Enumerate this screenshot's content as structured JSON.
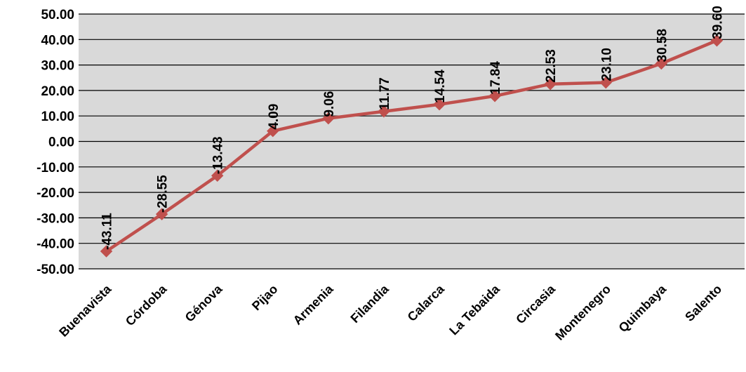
{
  "chart_data": {
    "type": "line",
    "categories": [
      "Buenavista",
      "Córdoba",
      "Génova",
      "Pijao",
      "Armenia",
      "Filandia",
      "Calarca",
      "La Tebaida",
      "Circasia",
      "Montenegro",
      "Quimbaya",
      "Salento"
    ],
    "series": [
      {
        "values": [
          -43.11,
          -28.55,
          -13.43,
          4.09,
          9.06,
          11.77,
          14.54,
          17.84,
          22.53,
          23.1,
          30.58,
          39.6
        ],
        "labels": [
          "-43.11",
          "-28.55",
          "-13.43",
          "4.09",
          "9.06",
          "11.77",
          "14.54",
          "17.84",
          "22.53",
          "23.10",
          "30.58",
          "39.60"
        ],
        "color": "#c0504d"
      }
    ],
    "yticks": [
      50,
      40,
      30,
      20,
      10,
      0,
      -10,
      -20,
      -30,
      -40,
      -50
    ],
    "ytick_labels": [
      "50.00",
      "40.00",
      "30.00",
      "20.00",
      "10.00",
      "0.00",
      "-10.00",
      "-20.00",
      "-30.00",
      "-40.00",
      "-50.00"
    ],
    "ylim": [
      -50,
      50
    ],
    "grid": true,
    "legend": "none",
    "plot_background": "#d9d9d9",
    "gridline_color": "#000000",
    "marker": "diamond",
    "title": "",
    "xlabel": "",
    "ylabel": ""
  }
}
